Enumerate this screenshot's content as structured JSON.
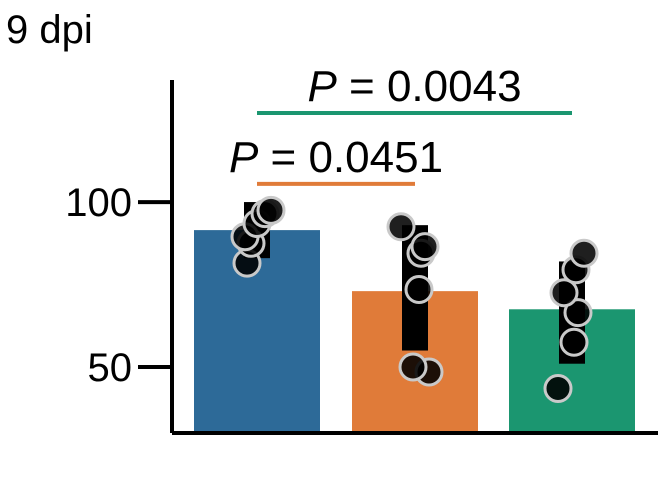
{
  "chart_data": {
    "type": "bar",
    "title": "9 dpi",
    "xlabel": "",
    "ylabel": "",
    "ylim": [
      30,
      137
    ],
    "yticks": [
      50,
      100
    ],
    "grid": false,
    "legend": "none",
    "categories": [
      "",
      "",
      ""
    ],
    "colors": [
      "#2d6a98",
      "#e07b39",
      "#1b9670"
    ],
    "values": [
      91.5,
      73,
      67.5
    ],
    "errors": [
      [
        83,
        100
      ],
      [
        55,
        93
      ],
      [
        51,
        82
      ]
    ],
    "points": [
      [
        81.5,
        87.5,
        89.5,
        93.5,
        96.5,
        97.5
      ],
      [
        48.5,
        50,
        73.5,
        84.5,
        86.5,
        92.5
      ],
      [
        43.5,
        57.5,
        66.5,
        72.5,
        79.5,
        84.5
      ]
    ],
    "annotations": [
      {
        "text": "P = 0.0451",
        "italic": "P",
        "rest": " = 0.0451",
        "from": 0,
        "to": 1,
        "y": 105.5,
        "color": "#e07b39"
      },
      {
        "text": "P = 0.0043",
        "italic": "P",
        "rest": " = 0.0043",
        "from": 0,
        "to": 2,
        "y": 127,
        "color": "#1b9670"
      }
    ]
  }
}
